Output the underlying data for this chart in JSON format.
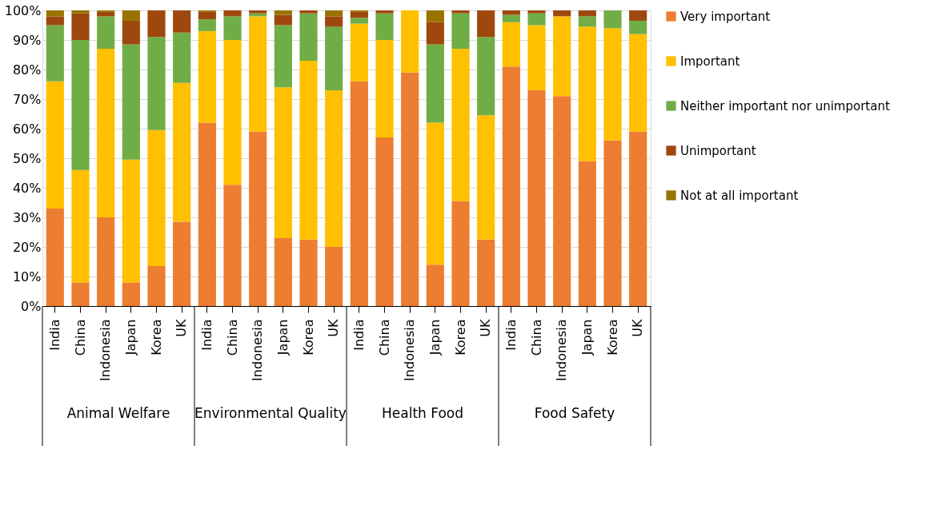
{
  "chart_data": {
    "type": "bar",
    "stacked": true,
    "categories": [
      "India",
      "China",
      "Indonesia",
      "Japan",
      "Korea",
      "UK",
      "India",
      "China",
      "Indonesia",
      "Japan",
      "Korea",
      "UK",
      "India",
      "China",
      "Indonesia",
      "Japan",
      "Korea",
      "UK",
      "India",
      "China",
      "Indonesia",
      "Japan",
      "Korea",
      "UK"
    ],
    "annotations": [
      "Animal Welfare",
      "Environmental Quality",
      "Health Food",
      "Food Safety"
    ],
    "series": [
      {
        "name": "Very important",
        "color": "#ed7d31",
        "values": [
          33,
          8,
          30,
          8,
          13.5,
          28.5,
          62,
          41,
          59,
          23,
          22.5,
          20,
          76,
          57,
          79,
          14,
          35.5,
          22.5,
          81,
          73,
          71,
          49,
          56,
          59
        ]
      },
      {
        "name": "Important",
        "color": "#ffc000",
        "values": [
          43,
          38,
          57,
          41.5,
          46,
          47,
          31,
          49,
          39,
          51,
          60.5,
          53,
          19.5,
          33,
          21,
          48,
          51.5,
          42,
          15,
          22,
          27,
          45.5,
          38,
          33
        ]
      },
      {
        "name": "Neither important nor unimportant",
        "color": "#70ad47",
        "values": [
          19,
          44,
          11,
          39,
          31.5,
          17,
          4,
          8,
          1,
          21,
          16,
          21.5,
          2,
          9,
          0,
          26.5,
          12,
          26.5,
          2.5,
          4,
          0,
          3.5,
          6,
          4.5
        ]
      },
      {
        "name": "Unimportant",
        "color": "#9e480e",
        "values": [
          3,
          9,
          1.5,
          8,
          9,
          7.5,
          2.5,
          2,
          1,
          3.5,
          1,
          3.5,
          2,
          1,
          0,
          7.5,
          1,
          9,
          1.5,
          1,
          2,
          2,
          0,
          3.5
        ]
      },
      {
        "name": "Not at all important",
        "color": "#997300",
        "values": [
          2,
          1,
          0.5,
          3.5,
          0,
          0,
          0.5,
          0,
          0,
          1.5,
          0,
          2,
          0.5,
          0,
          0,
          4,
          0,
          0,
          0,
          0,
          0,
          0,
          0,
          0
        ]
      }
    ],
    "ylim": [
      0,
      100
    ],
    "yticks": [
      {
        "value": 0,
        "label": "0%"
      },
      {
        "value": 10,
        "label": "10%"
      },
      {
        "value": 20,
        "label": "20%"
      },
      {
        "value": 30,
        "label": "30%"
      },
      {
        "value": 40,
        "label": "40%"
      },
      {
        "value": 50,
        "label": "50%"
      },
      {
        "value": 60,
        "label": "60%"
      },
      {
        "value": 70,
        "label": "70%"
      },
      {
        "value": 80,
        "label": "80%"
      },
      {
        "value": 90,
        "label": "90%"
      },
      {
        "value": 100,
        "label": "100%"
      }
    ],
    "grid": "y",
    "legend": "right"
  }
}
